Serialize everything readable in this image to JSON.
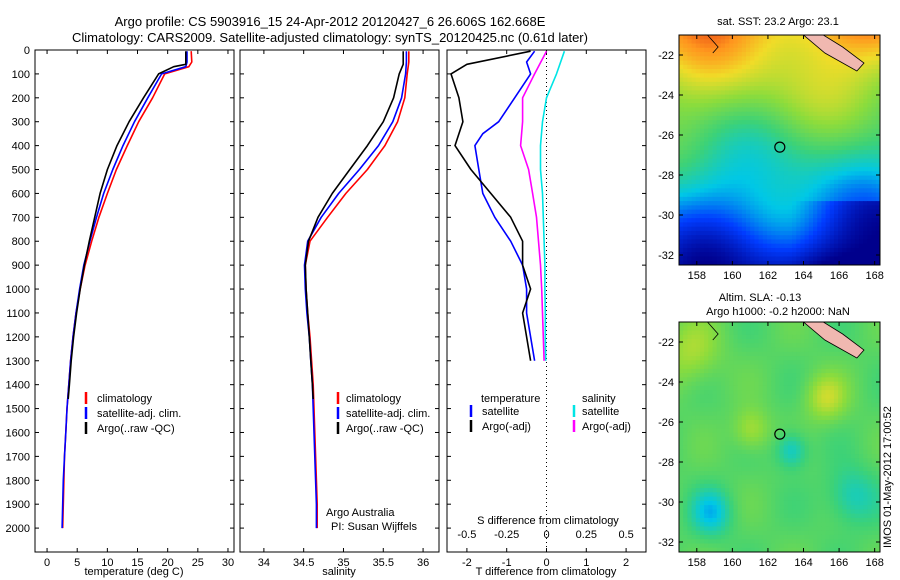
{
  "title": {
    "line1": "Argo profile: CS 5903916_15 24-Apr-2012 20120427_6 26.606S 162.668E",
    "line2": "Climatology: CARS2009. Satellite-adjusted climatology: synTS_20120425.nc (0.61d later)"
  },
  "colors": {
    "red": "#ff0000",
    "blue": "#0000ff",
    "black": "#000000",
    "cyan": "#00e5e5",
    "magenta": "#ff00ff"
  },
  "chart_data": [
    {
      "id": "temperature",
      "type": "line",
      "xlabel": "temperature (deg C)",
      "ylabel": "",
      "xlim": [
        -2,
        31
      ],
      "ylim": [
        2100,
        0
      ],
      "xticks": [
        0,
        5,
        10,
        15,
        20,
        25,
        30
      ],
      "yticks": [
        0,
        100,
        200,
        300,
        400,
        500,
        600,
        700,
        800,
        900,
        1000,
        1100,
        1200,
        1300,
        1400,
        1500,
        1600,
        1700,
        1800,
        1900,
        2000
      ],
      "legend": [
        "climatology",
        "satellite-adj. clim.",
        "Argo(..raw -QC)"
      ],
      "legend_position": "lower-center",
      "series": [
        {
          "name": "climatology",
          "color": "#ff0000",
          "points": [
            [
              23.9,
              5
            ],
            [
              24.0,
              50
            ],
            [
              23.5,
              70
            ],
            [
              19.5,
              100
            ],
            [
              17.5,
              200
            ],
            [
              15.2,
              300
            ],
            [
              13.3,
              400
            ],
            [
              11.5,
              500
            ],
            [
              10.0,
              600
            ],
            [
              8.6,
              700
            ],
            [
              7.4,
              800
            ],
            [
              6.3,
              900
            ],
            [
              5.5,
              1000
            ],
            [
              4.8,
              1100
            ],
            [
              4.3,
              1200
            ],
            [
              3.9,
              1300
            ],
            [
              3.6,
              1400
            ],
            [
              3.3,
              1500
            ],
            [
              3.1,
              1600
            ],
            [
              2.9,
              1700
            ],
            [
              2.8,
              1800
            ],
            [
              2.7,
              1900
            ],
            [
              2.6,
              2000
            ]
          ]
        },
        {
          "name": "satellite-adj. clim.",
          "color": "#0000ff",
          "points": [
            [
              23.2,
              5
            ],
            [
              23.2,
              50
            ],
            [
              23.0,
              70
            ],
            [
              19.0,
              100
            ],
            [
              16.7,
              200
            ],
            [
              14.5,
              300
            ],
            [
              12.6,
              400
            ],
            [
              10.9,
              500
            ],
            [
              9.4,
              600
            ],
            [
              8.2,
              700
            ],
            [
              7.1,
              800
            ],
            [
              6.1,
              900
            ],
            [
              5.4,
              1000
            ],
            [
              4.8,
              1100
            ],
            [
              4.3,
              1200
            ],
            [
              3.9,
              1300
            ],
            [
              3.6,
              1400
            ],
            [
              3.3,
              1500
            ],
            [
              3.1,
              1600
            ],
            [
              2.9,
              1700
            ],
            [
              2.7,
              1800
            ],
            [
              2.6,
              1900
            ],
            [
              2.5,
              2000
            ]
          ]
        },
        {
          "name": "Argo(..raw -QC)",
          "color": "#000000",
          "points": [
            [
              23.0,
              5
            ],
            [
              23.0,
              60
            ],
            [
              21.0,
              70
            ],
            [
              18.5,
              100
            ],
            [
              16.0,
              200
            ],
            [
              13.6,
              300
            ],
            [
              11.6,
              400
            ],
            [
              10.0,
              500
            ],
            [
              8.8,
              600
            ],
            [
              7.9,
              700
            ],
            [
              7.0,
              800
            ],
            [
              6.2,
              900
            ],
            [
              5.5,
              1000
            ],
            [
              4.9,
              1100
            ],
            [
              4.4,
              1200
            ],
            [
              4.0,
              1300
            ],
            [
              3.7,
              1400
            ],
            [
              3.5,
              1460
            ]
          ]
        }
      ]
    },
    {
      "id": "salinity",
      "type": "line",
      "xlabel": "salinity",
      "xlim": [
        33.7,
        36.2
      ],
      "ylim": [
        2100,
        0
      ],
      "xticks": [
        34,
        34.5,
        35,
        35.5,
        36
      ],
      "legend": [
        "climatology",
        "satellite-adj. clim.",
        "Argo(..raw -QC)"
      ],
      "legend_position": "lower-center",
      "annotations": [
        "Argo Australia",
        "PI: Susan Wijffels"
      ],
      "series": [
        {
          "name": "climatology",
          "color": "#ff0000",
          "points": [
            [
              35.82,
              5
            ],
            [
              35.82,
              50
            ],
            [
              35.8,
              100
            ],
            [
              35.77,
              200
            ],
            [
              35.68,
              300
            ],
            [
              35.52,
              400
            ],
            [
              35.3,
              500
            ],
            [
              35.03,
              600
            ],
            [
              34.8,
              700
            ],
            [
              34.58,
              800
            ],
            [
              34.52,
              900
            ],
            [
              34.53,
              1000
            ],
            [
              34.55,
              1100
            ],
            [
              34.58,
              1200
            ],
            [
              34.6,
              1300
            ],
            [
              34.62,
              1400
            ],
            [
              34.63,
              1500
            ],
            [
              34.64,
              1600
            ],
            [
              34.65,
              1700
            ],
            [
              34.66,
              1800
            ],
            [
              34.67,
              1900
            ],
            [
              34.67,
              2000
            ]
          ]
        },
        {
          "name": "satellite-adj. clim.",
          "color": "#0000ff",
          "points": [
            [
              35.79,
              5
            ],
            [
              35.79,
              50
            ],
            [
              35.78,
              100
            ],
            [
              35.73,
              200
            ],
            [
              35.62,
              300
            ],
            [
              35.44,
              400
            ],
            [
              35.2,
              500
            ],
            [
              34.94,
              600
            ],
            [
              34.72,
              700
            ],
            [
              34.55,
              800
            ],
            [
              34.51,
              900
            ],
            [
              34.52,
              1000
            ],
            [
              34.54,
              1100
            ],
            [
              34.57,
              1200
            ],
            [
              34.59,
              1300
            ],
            [
              34.61,
              1400
            ],
            [
              34.62,
              1500
            ],
            [
              34.63,
              1600
            ],
            [
              34.64,
              1700
            ],
            [
              34.65,
              1800
            ],
            [
              34.66,
              1900
            ],
            [
              34.66,
              2000
            ]
          ]
        },
        {
          "name": "Argo(..raw -QC)",
          "color": "#000000",
          "points": [
            [
              35.75,
              5
            ],
            [
              35.75,
              60
            ],
            [
              35.7,
              100
            ],
            [
              35.63,
              200
            ],
            [
              35.5,
              300
            ],
            [
              35.3,
              400
            ],
            [
              35.08,
              500
            ],
            [
              34.86,
              600
            ],
            [
              34.68,
              700
            ],
            [
              34.56,
              800
            ],
            [
              34.52,
              900
            ],
            [
              34.53,
              1000
            ],
            [
              34.55,
              1100
            ],
            [
              34.57,
              1200
            ],
            [
              34.59,
              1300
            ],
            [
              34.61,
              1400
            ],
            [
              34.62,
              1460
            ]
          ]
        }
      ]
    },
    {
      "id": "difference",
      "type": "line",
      "xlabel": "T difference from climatology",
      "xlabel2": "S difference from climatology",
      "xlim": [
        -2.5,
        2.5
      ],
      "ylim": [
        2100,
        0
      ],
      "xticks": [
        -2,
        -1,
        0,
        1,
        2
      ],
      "xticks2": [
        "-0.5",
        "-0.25",
        "0",
        "0.25",
        "0.5"
      ],
      "legend_headers": [
        "temperature",
        "salinity"
      ],
      "legend": [
        "satellite",
        "Argo(-adj)",
        "satellite",
        "Argo(-adj)"
      ],
      "legend_position": "lower-center",
      "series": [
        {
          "name": "satellite",
          "color": "#0000ff",
          "points": [
            [
              -0.3,
              5
            ],
            [
              -0.5,
              50
            ],
            [
              -0.4,
              100
            ],
            [
              -0.8,
              200
            ],
            [
              -1.2,
              300
            ],
            [
              -1.6,
              350
            ],
            [
              -1.8,
              400
            ],
            [
              -1.7,
              500
            ],
            [
              -1.6,
              600
            ],
            [
              -1.3,
              700
            ],
            [
              -0.9,
              800
            ],
            [
              -0.6,
              900
            ],
            [
              -0.5,
              1000
            ],
            [
              -0.5,
              1100
            ],
            [
              -0.4,
              1200
            ],
            [
              -0.3,
              1300
            ]
          ]
        },
        {
          "name": "Argo(-adj)",
          "color": "#000000",
          "points": [
            [
              -0.4,
              5
            ],
            [
              -2.0,
              60
            ],
            [
              -2.4,
              100
            ],
            [
              -2.2,
              200
            ],
            [
              -2.1,
              300
            ],
            [
              -2.3,
              400
            ],
            [
              -1.9,
              500
            ],
            [
              -1.4,
              600
            ],
            [
              -0.9,
              700
            ],
            [
              -0.6,
              800
            ],
            [
              -0.6,
              900
            ],
            [
              -0.4,
              1000
            ],
            [
              -0.6,
              1100
            ],
            [
              -0.5,
              1200
            ],
            [
              -0.4,
              1300
            ]
          ]
        },
        {
          "name": "satellite",
          "color": "#00e5e5",
          "points": [
            [
              0.45,
              5
            ],
            [
              0.25,
              100
            ],
            [
              0.0,
              200
            ],
            [
              -0.1,
              300
            ],
            [
              -0.15,
              400
            ],
            [
              -0.15,
              500
            ],
            [
              -0.1,
              600
            ],
            [
              -0.08,
              700
            ],
            [
              -0.06,
              800
            ],
            [
              -0.04,
              900
            ],
            [
              -0.04,
              1000
            ],
            [
              -0.03,
              1100
            ],
            [
              -0.03,
              1200
            ],
            [
              -0.02,
              1300
            ]
          ]
        },
        {
          "name": "Argo(-adj)",
          "color": "#ff00ff",
          "points": [
            [
              0.0,
              5
            ],
            [
              -0.3,
              100
            ],
            [
              -0.6,
              200
            ],
            [
              -0.6,
              300
            ],
            [
              -0.65,
              400
            ],
            [
              -0.45,
              500
            ],
            [
              -0.35,
              600
            ],
            [
              -0.25,
              700
            ],
            [
              -0.2,
              800
            ],
            [
              -0.15,
              900
            ],
            [
              -0.12,
              1000
            ],
            [
              -0.1,
              1100
            ],
            [
              -0.08,
              1200
            ],
            [
              -0.06,
              1300
            ]
          ]
        }
      ]
    },
    {
      "id": "sst-map",
      "type": "heatmap",
      "title": "sat. SST: 23.2 Argo: 23.1",
      "xlim": [
        157,
        168.3
      ],
      "ylim": [
        -32.5,
        -21
      ],
      "xticks": [
        158,
        160,
        162,
        164,
        166,
        168
      ],
      "yticks": [
        -22,
        -24,
        -26,
        -28,
        -30,
        -32
      ],
      "marker": [
        162.668,
        -26.606
      ]
    },
    {
      "id": "sla-map",
      "type": "heatmap",
      "title": "Altim. SLA: -0.13",
      "subtitle": "Argo h1000: -0.2 h2000: NaN",
      "xlim": [
        157,
        168.3
      ],
      "ylim": [
        -32.5,
        -21
      ],
      "xticks": [
        158,
        160,
        162,
        164,
        166,
        168
      ],
      "yticks": [
        -22,
        -24,
        -26,
        -28,
        -30,
        -32
      ],
      "marker": [
        162.668,
        -26.606
      ]
    }
  ],
  "side_label": "IMOS 01-May-2012 17:00:52"
}
